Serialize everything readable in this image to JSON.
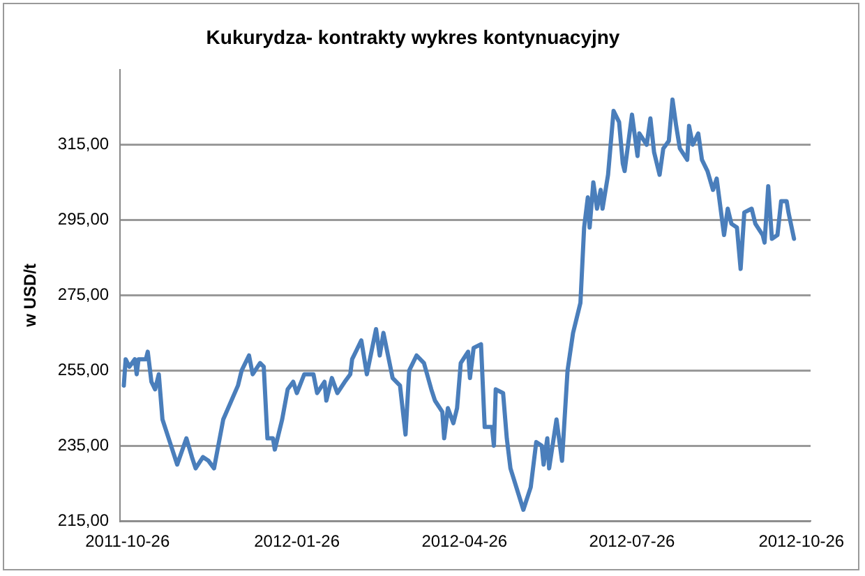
{
  "chart_data": {
    "type": "line",
    "title": "Kukurydza- kontrakty wykres kontynuacyjny",
    "ylabel": "w USD/t",
    "xlim": [
      "2011-10-22",
      "2012-10-31"
    ],
    "xticks": [
      "2011-10-26",
      "2012-01-26",
      "2012-04-26",
      "2012-07-26",
      "2012-10-26"
    ],
    "ylim": [
      215,
      335
    ],
    "yticks": [
      {
        "value": 215,
        "label": "215,00"
      },
      {
        "value": 235,
        "label": "235,00"
      },
      {
        "value": 255,
        "label": "255,00"
      },
      {
        "value": 275,
        "label": "275,00"
      },
      {
        "value": 295,
        "label": "295,00"
      },
      {
        "value": 315,
        "label": "315,00"
      }
    ],
    "grid": "y",
    "legend": false,
    "marker": "none",
    "line_style": "solid",
    "x": [
      "2011-10-24",
      "2011-10-25",
      "2011-10-27",
      "2011-10-30",
      "2011-10-31",
      "2011-11-01",
      "2011-11-05",
      "2011-11-06",
      "2011-11-07",
      "2011-11-08",
      "2011-11-10",
      "2011-11-12",
      "2011-11-14",
      "2011-11-18",
      "2011-11-22",
      "2011-11-27",
      "2011-11-30",
      "2011-12-02",
      "2011-12-06",
      "2011-12-09",
      "2011-12-12",
      "2011-12-17",
      "2011-12-25",
      "2011-12-27",
      "2011-12-31",
      "2012-01-02",
      "2012-01-06",
      "2012-01-08",
      "2012-01-10",
      "2012-01-13",
      "2012-01-14",
      "2012-01-18",
      "2012-01-21",
      "2012-01-24",
      "2012-01-26",
      "2012-01-30",
      "2012-02-04",
      "2012-02-06",
      "2012-02-10",
      "2012-02-11",
      "2012-02-14",
      "2012-02-17",
      "2012-02-21",
      "2012-02-24",
      "2012-02-25",
      "2012-03-01",
      "2012-03-04",
      "2012-03-09",
      "2012-03-11",
      "2012-03-13",
      "2012-03-18",
      "2012-03-22",
      "2012-03-25",
      "2012-03-27",
      "2012-03-31",
      "2012-04-04",
      "2012-04-08",
      "2012-04-10",
      "2012-04-14",
      "2012-04-15",
      "2012-04-17",
      "2012-04-20",
      "2012-04-22",
      "2012-04-24",
      "2012-04-28",
      "2012-04-29",
      "2012-05-01",
      "2012-05-05",
      "2012-05-07",
      "2012-05-11",
      "2012-05-12",
      "2012-05-13",
      "2012-05-17",
      "2012-05-19",
      "2012-05-21",
      "2012-05-28",
      "2012-06-01",
      "2012-06-04",
      "2012-06-07",
      "2012-06-08",
      "2012-06-10",
      "2012-06-11",
      "2012-06-15",
      "2012-06-18",
      "2012-06-21",
      "2012-06-24",
      "2012-06-28",
      "2012-06-30",
      "2012-07-02",
      "2012-07-03",
      "2012-07-05",
      "2012-07-07",
      "2012-07-09",
      "2012-07-10",
      "2012-07-13",
      "2012-07-16",
      "2012-07-19",
      "2012-07-21",
      "2012-07-22",
      "2012-07-26",
      "2012-07-29",
      "2012-07-30",
      "2012-08-03",
      "2012-08-05",
      "2012-08-07",
      "2012-08-10",
      "2012-08-12",
      "2012-08-15",
      "2012-08-17",
      "2012-08-19",
      "2012-08-21",
      "2012-08-25",
      "2012-08-26",
      "2012-08-28",
      "2012-08-31",
      "2012-09-02",
      "2012-09-05",
      "2012-09-08",
      "2012-09-10",
      "2012-09-14",
      "2012-09-16",
      "2012-09-18",
      "2012-09-21",
      "2012-09-23",
      "2012-09-25",
      "2012-09-29",
      "2012-10-01",
      "2012-10-05",
      "2012-10-06",
      "2012-10-08",
      "2012-10-10",
      "2012-10-13",
      "2012-10-15",
      "2012-10-18",
      "2012-10-19",
      "2012-10-22"
    ],
    "series": [
      {
        "color": "#4a7ebb",
        "values": [
          251,
          258,
          256,
          258,
          254,
          258,
          258,
          260,
          256,
          252,
          250,
          254,
          242,
          236,
          230,
          237,
          232,
          229,
          232,
          231,
          229,
          242,
          251,
          255,
          259,
          254,
          257,
          256,
          237,
          237,
          234,
          242,
          250,
          252,
          249,
          254,
          254,
          249,
          252,
          247,
          253,
          249,
          252,
          254,
          258,
          263,
          254,
          266,
          259,
          265,
          253,
          251,
          238,
          255,
          259,
          257,
          250,
          247,
          244,
          237,
          245,
          241,
          245,
          257,
          260,
          253,
          261,
          262,
          240,
          240,
          235,
          250,
          249,
          237,
          229,
          218,
          224,
          236,
          235,
          230,
          237,
          229,
          242,
          231,
          255,
          265,
          273,
          293,
          301,
          293,
          305,
          298,
          303,
          298,
          307,
          324,
          321,
          310,
          308,
          323,
          312,
          318,
          315,
          322,
          313,
          307,
          314,
          316,
          327,
          320,
          314,
          311,
          320,
          315,
          318,
          311,
          308,
          303,
          306,
          291,
          298,
          294,
          293,
          282,
          297,
          298,
          294,
          291,
          289,
          304,
          290,
          291,
          300,
          300,
          297,
          290
        ]
      }
    ]
  }
}
